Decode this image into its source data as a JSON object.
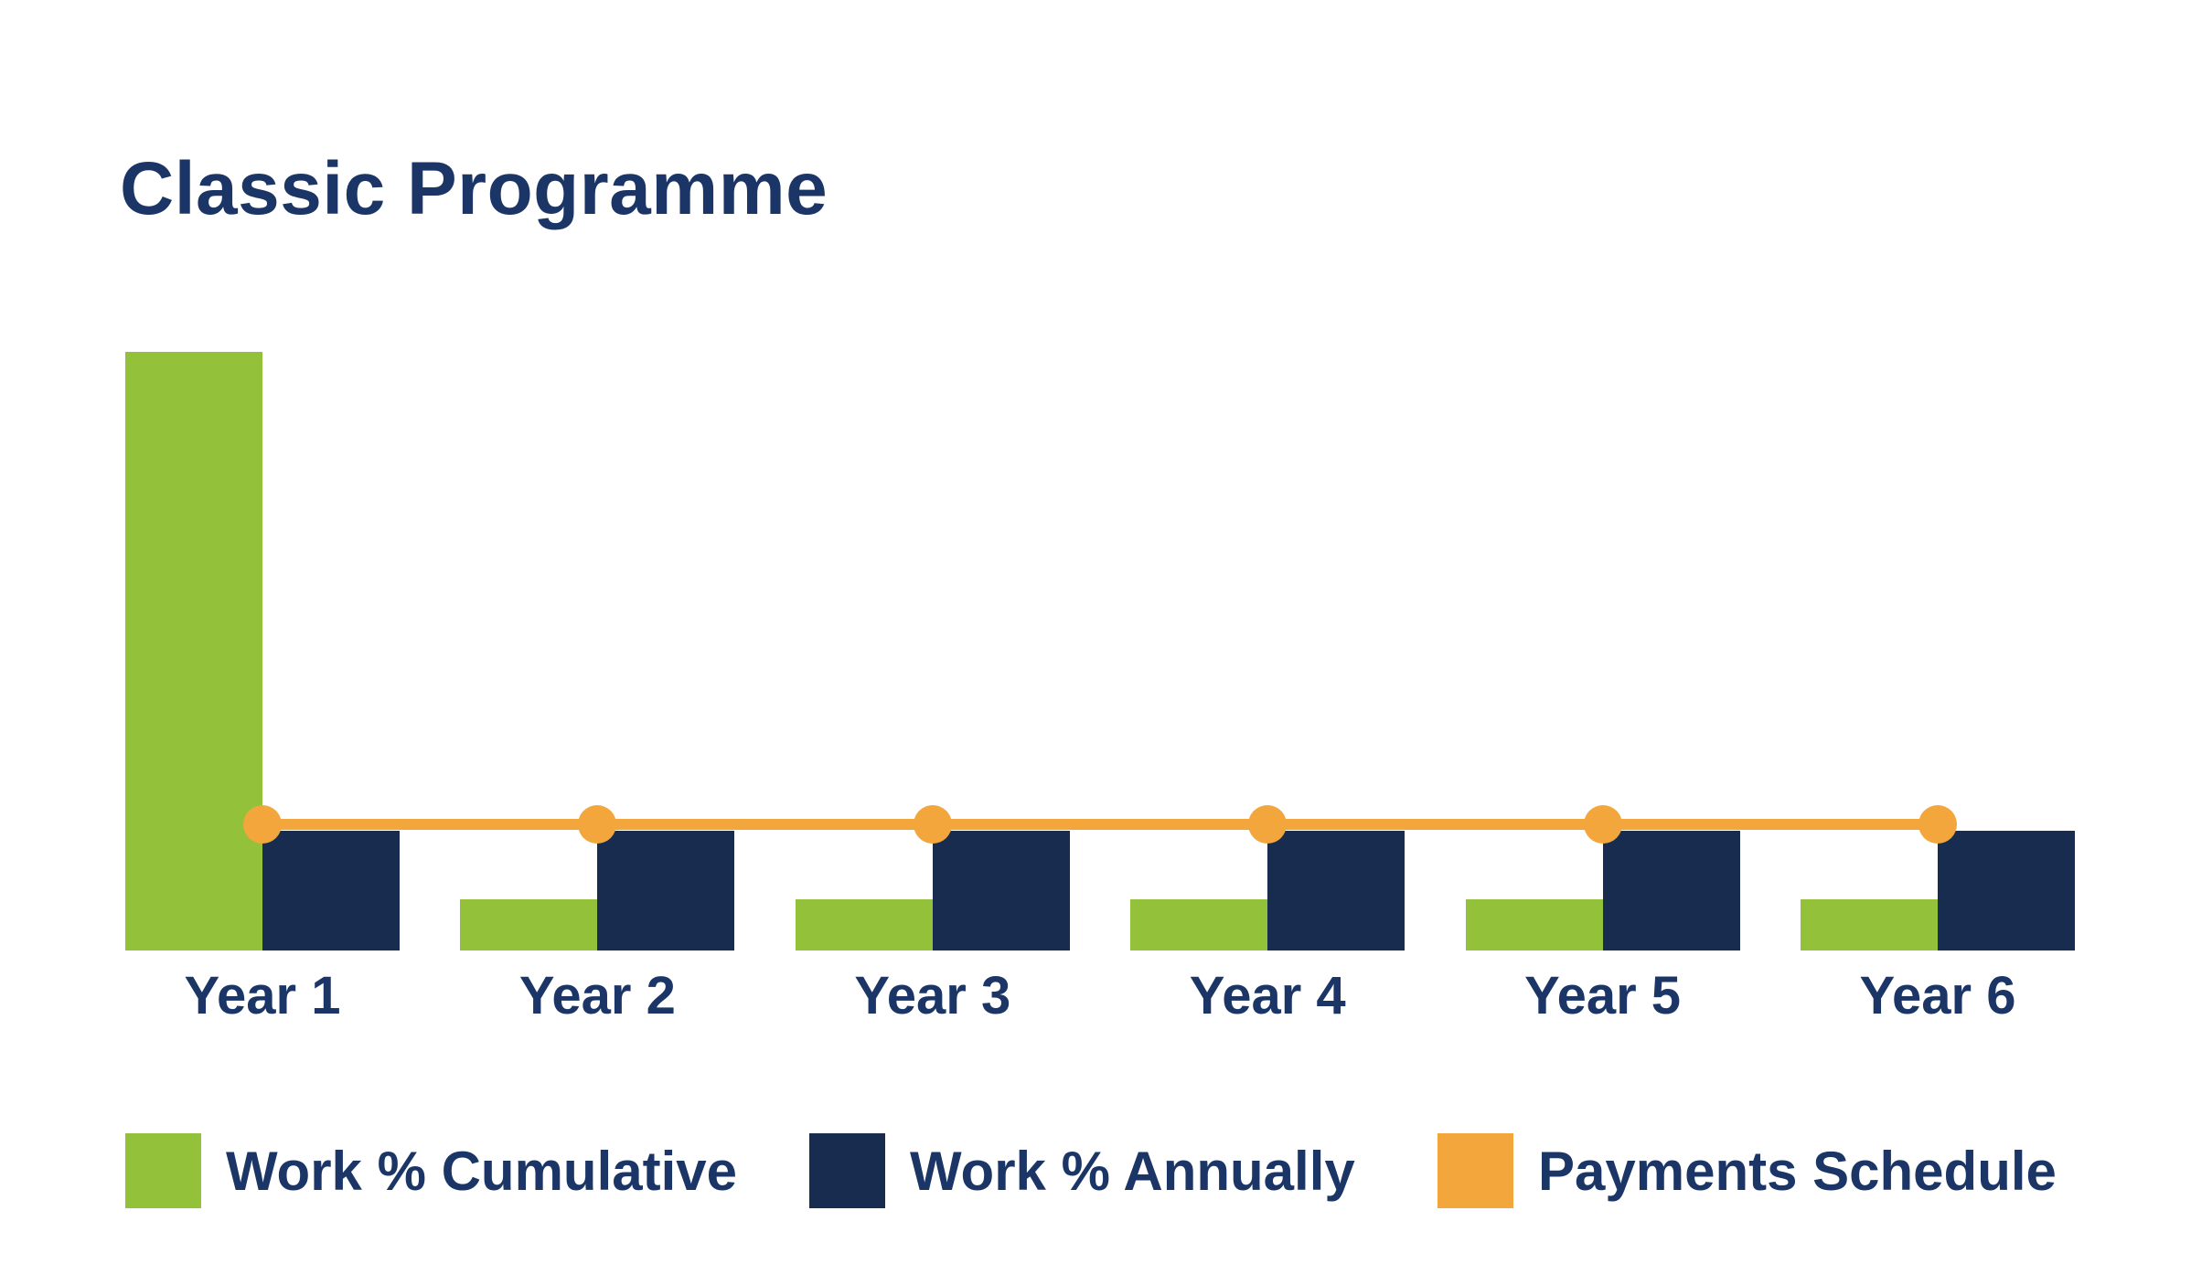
{
  "page": {
    "background": "#ffffff",
    "text_color": "#1b3666"
  },
  "chart_data": {
    "type": "combo-bar-line",
    "title": "Classic Programme",
    "categories": [
      "Year 1",
      "Year 2",
      "Year 3",
      "Year 4",
      "Year 5",
      "Year 6"
    ],
    "series": [
      {
        "name": "Work % Cumulative",
        "type": "bar",
        "color": "#93c13a",
        "values": [
          100,
          8.5,
          8.5,
          8.5,
          8.5,
          8.5
        ]
      },
      {
        "name": "Work % Annually",
        "type": "bar",
        "color": "#172c4e",
        "values": [
          20,
          20,
          20,
          20,
          20,
          20
        ]
      },
      {
        "name": "Payments Schedule",
        "type": "line",
        "color": "#f2a63c",
        "marker": "circle",
        "values": [
          21,
          21,
          21,
          21,
          21,
          21
        ]
      }
    ],
    "ylim": [
      0,
      100
    ],
    "values_estimated": true,
    "grid": false,
    "y_axis_visible": false,
    "x_axis_line_visible": false,
    "legend_position": "bottom"
  }
}
